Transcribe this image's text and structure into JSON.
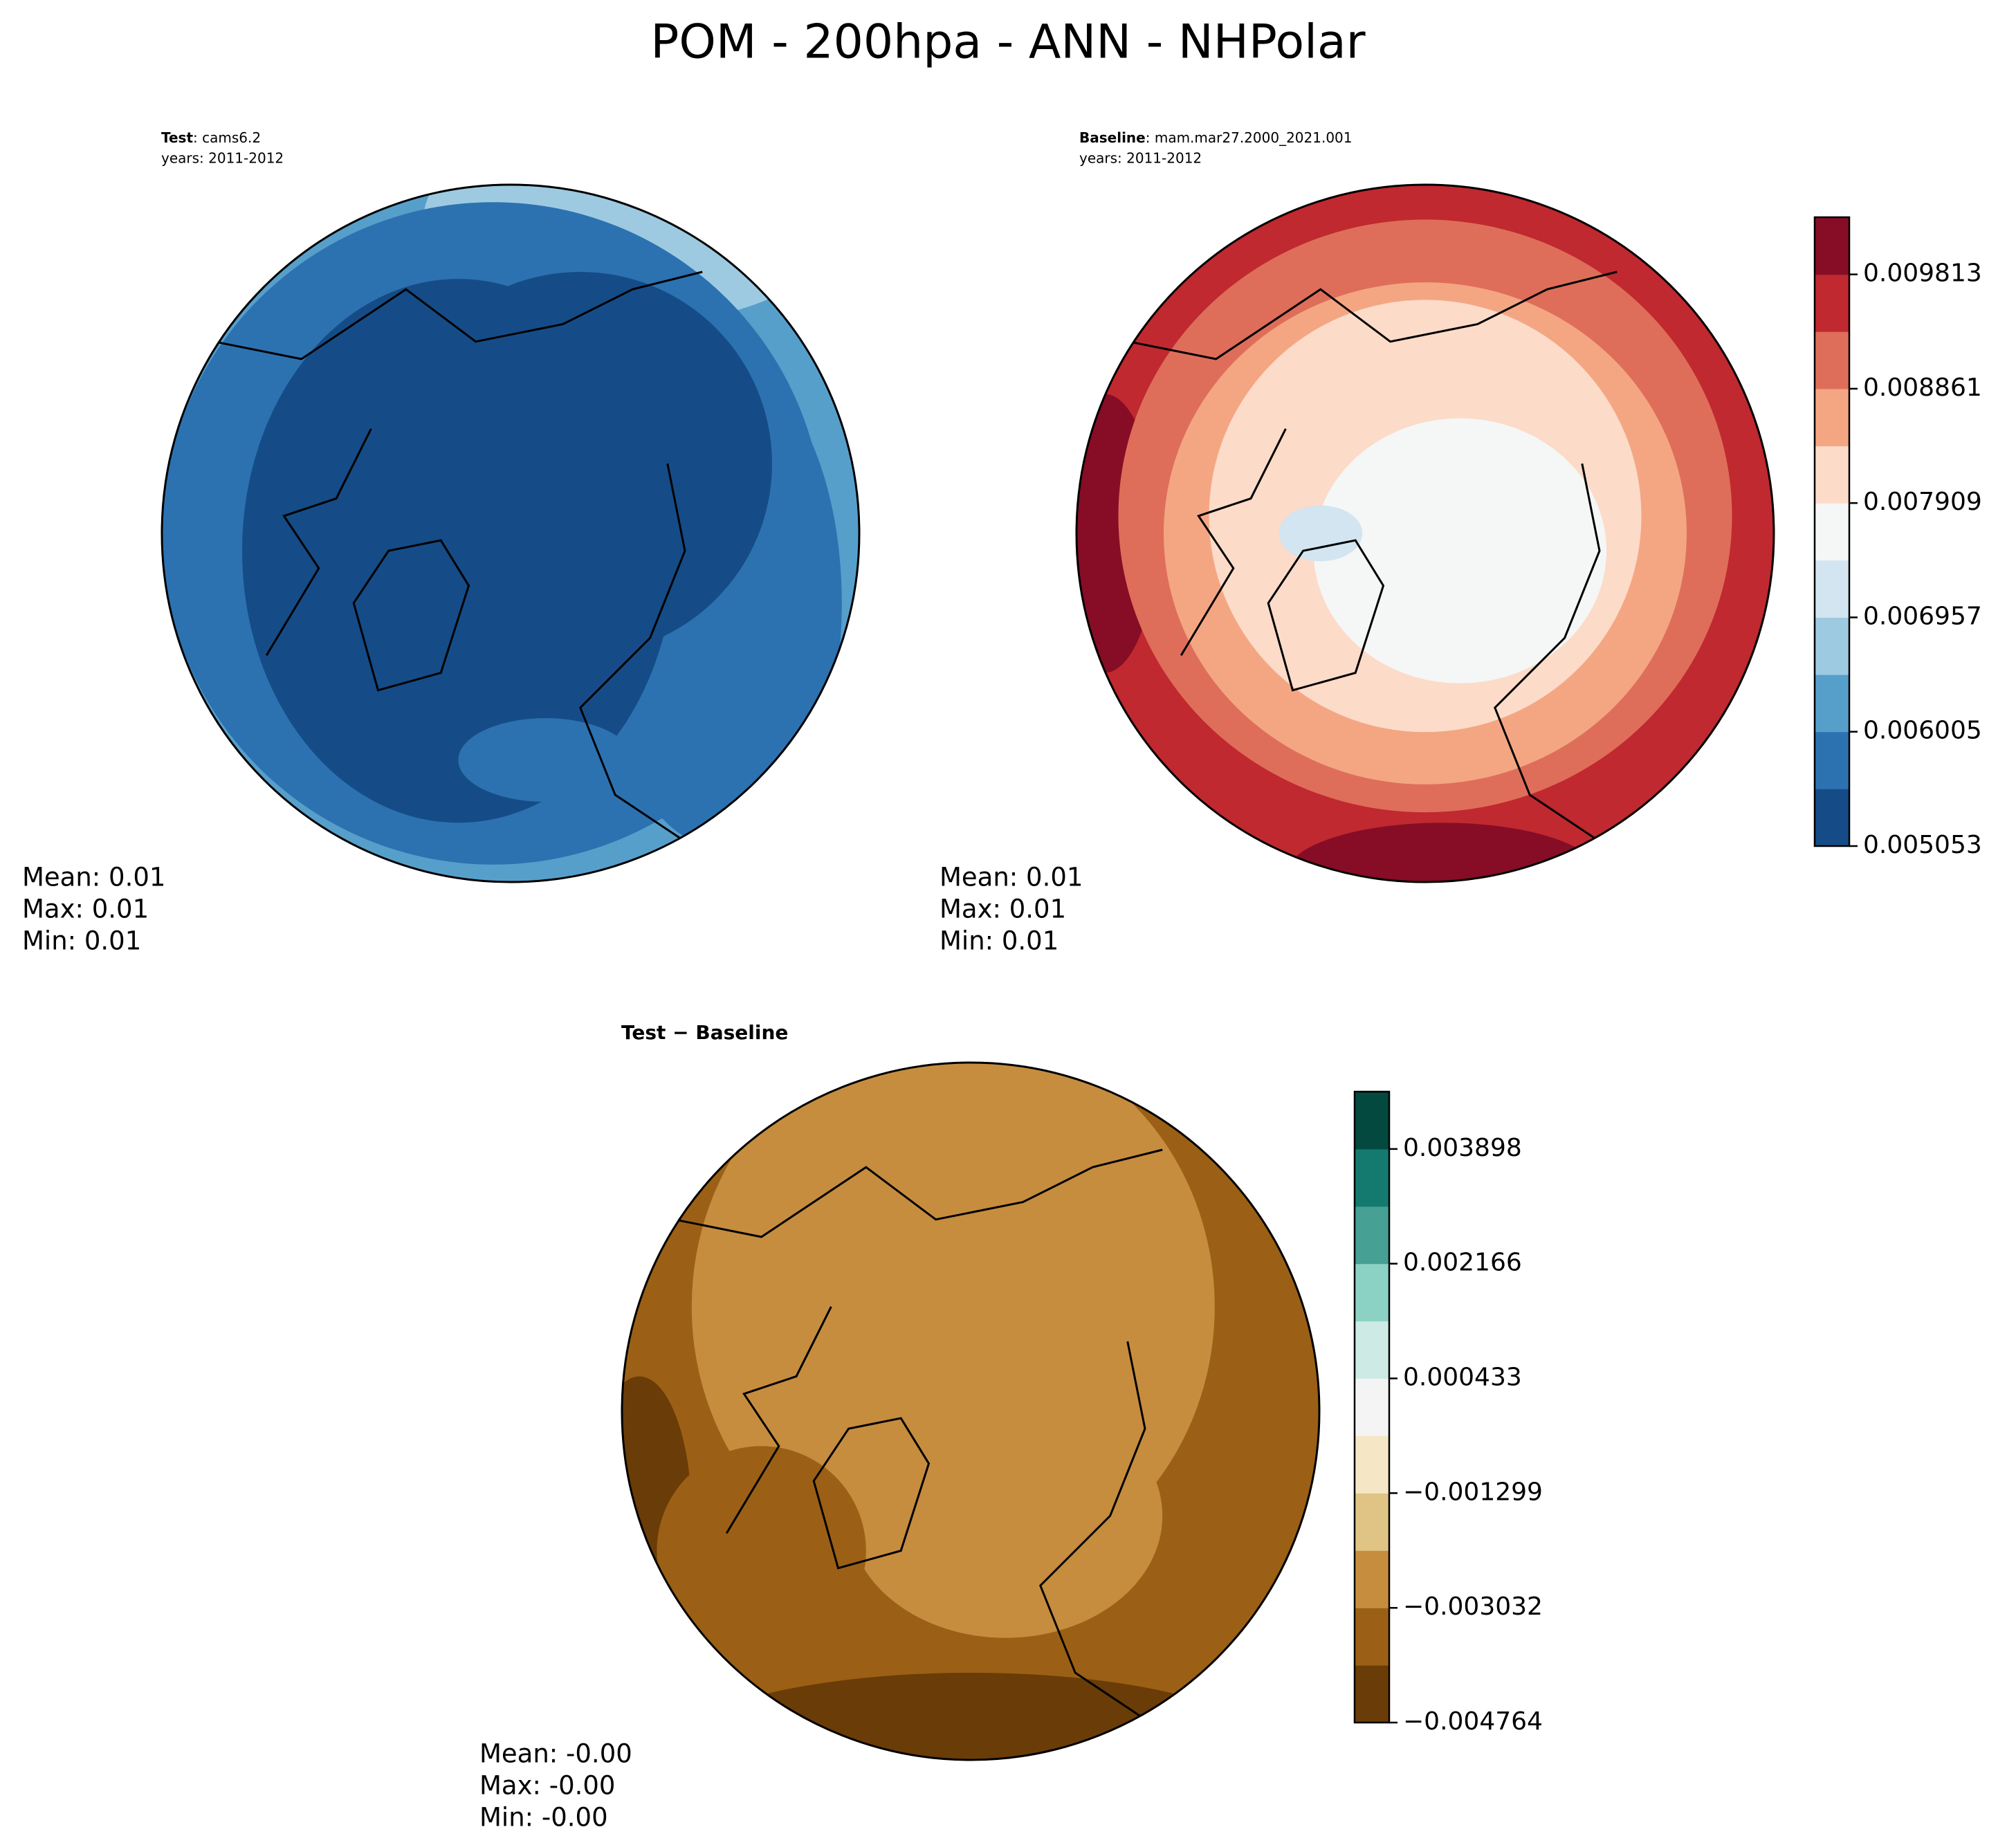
{
  "title": "POM - 200hpa - ANN - NHPolar",
  "chart_data": [
    {
      "type": "polar-contour",
      "label_bold": "Test",
      "label_text": ": cams6.2",
      "label_years": "years: 2011-2012",
      "stats": [
        "Mean:  0.01",
        "Max:  0.01",
        "Min:  0.01"
      ]
    },
    {
      "type": "polar-contour",
      "label_bold": "Baseline",
      "label_text": ": mam.mar27.2000_2021.001",
      "label_years": "years: 2011-2012",
      "stats": [
        "Mean:  0.01",
        "Max:  0.01",
        "Min:  0.01"
      ],
      "colorbar": {
        "lim": [
          0.005053,
          0.010289
        ],
        "ticks": [
          0.005053,
          0.006005,
          0.006957,
          0.007909,
          0.008861,
          0.009813
        ],
        "colors": [
          "#154c87",
          "#2c72b1",
          "#579fcb",
          "#9ecae1",
          "#d2e5f0",
          "#f5f6f6",
          "#fcdbc9",
          "#f4a683",
          "#de6e5a",
          "#c0292f",
          "#860d25"
        ]
      }
    },
    {
      "type": "polar-contour",
      "label_bold": "Test − Baseline",
      "stats": [
        "Mean: -0.00",
        "Max: -0.00",
        "Min: -0.00"
      ],
      "colorbar": {
        "lim": [
          -0.004764,
          0.004764
        ],
        "ticks": [
          {
            "value": -0.004764,
            "label": "−0.004764"
          },
          {
            "value": -0.003032,
            "label": "−0.003032"
          },
          {
            "value": -0.001299,
            "label": "−0.001299"
          },
          0.000433,
          0.002166,
          0.003898
        ],
        "colors": [
          "#6a3c07",
          "#9b6015",
          "#c68d3f",
          "#e0c485",
          "#f5e7c6",
          "#f4f4f4",
          "#cdeae5",
          "#8cd2c4",
          "#46a093",
          "#147a6f",
          "#03493f"
        ]
      }
    }
  ]
}
